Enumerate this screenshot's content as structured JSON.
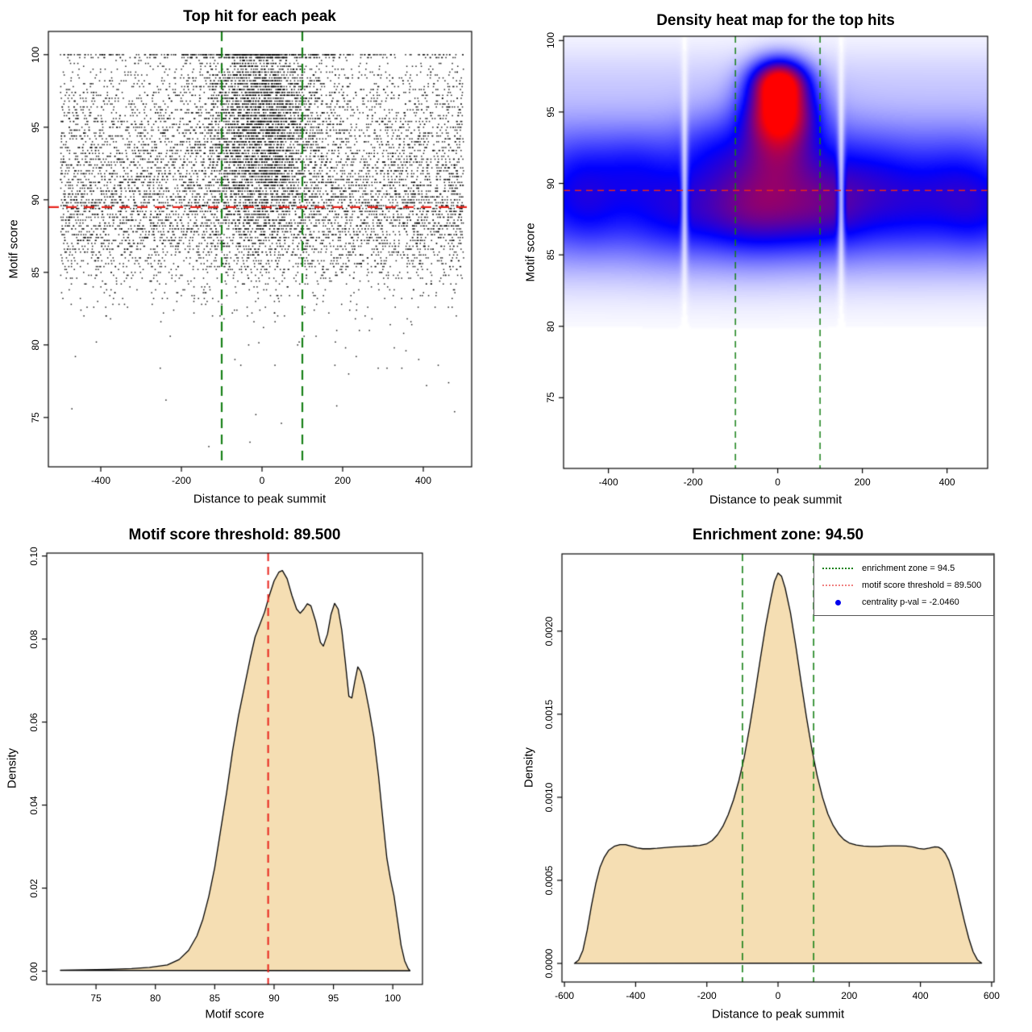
{
  "colors": {
    "background": "#ffffff",
    "threshold_red": "#e8241c",
    "zone_green": "#168016",
    "legend_red": "#f08080",
    "legend_blue": "#0000ee",
    "density_fill": "#f5deb3",
    "curve_stroke": "#000000",
    "heat_low": "#ffffff",
    "heat_mid": "#0000ff",
    "heat_high": "#ff0000"
  },
  "chart_data": [
    {
      "id": "top-hit-scatter",
      "type": "scatter",
      "title": "Top hit for each peak",
      "xlabel": "Distance to peak summit",
      "ylabel": "Motif score",
      "xlim": [
        -530,
        520
      ],
      "ylim": [
        71.6,
        101.6
      ],
      "x_tick_labels": [
        "-400",
        "-200",
        "0",
        "200",
        "400"
      ],
      "y_tick_labels": [
        "75",
        "80",
        "85",
        "90",
        "95",
        "100"
      ],
      "point_color": "#000000",
      "motif_score_threshold": 89.5,
      "enrichment_zone": [
        -100,
        100
      ],
      "lines": [
        {
          "orient": "h",
          "v": 89.5,
          "color": "#e8241c",
          "w": 2.2,
          "dash": [
            13,
            9
          ]
        },
        {
          "orient": "v",
          "v": -100,
          "color": "#168016",
          "w": 2.2,
          "dash": [
            12,
            8
          ]
        },
        {
          "orient": "v",
          "v": 100,
          "color": "#168016",
          "w": 2.2,
          "dash": [
            12,
            8
          ]
        }
      ],
      "sim": {
        "seed": 42,
        "n": 10500,
        "quantum": 0.2,
        "x_range": [
          -500,
          500
        ],
        "center_sigma": 68,
        "center_weight_base": 0.08,
        "center_weight_from": 88,
        "center_weight_slope": 0.045,
        "center_weight_max": 0.62,
        "top_lines": [
          {
            "score": 100,
            "n": 230
          },
          {
            "score": 99.8,
            "n": 130
          }
        ],
        "outliers": [
          [
            -30,
            73.3
          ],
          [
            -8,
            80.15
          ]
        ],
        "low_tail": {
          "n": 22,
          "range": [
            81,
            83.6
          ]
        }
      }
    },
    {
      "id": "top-hit-heatmap",
      "type": "heatmap",
      "title": "Density heat map for the top hits",
      "xlabel": "Distance to peak summit",
      "ylabel": "Motif score",
      "xlim": [
        -506,
        496
      ],
      "ylim": [
        70.05,
        100.3
      ],
      "x_tick_labels": [
        "-400",
        "-200",
        "0",
        "200",
        "400"
      ],
      "y_tick_labels": [
        "75",
        "80",
        "85",
        "90",
        "95",
        "100"
      ],
      "palette": [
        "#ffffff",
        "#0000ff",
        "#ff0000"
      ],
      "hotspots": [
        {
          "x": 6,
          "y": 95.15
        },
        {
          "x": 4,
          "y": 97.2
        }
      ],
      "white_gap_columns": [
        -220,
        150
      ],
      "blobs": [
        [
          0.34,
          null,
          null,
          88.4,
          2.9
        ],
        [
          0.1,
          null,
          null,
          93.2,
          2.0
        ],
        [
          0.05,
          null,
          null,
          97.3,
          1.7
        ],
        [
          0.18,
          0,
          110,
          91.3,
          2.6
        ],
        [
          0.15,
          0,
          150,
          87.6,
          1.8
        ],
        [
          0.8,
          6,
          54,
          95.15,
          1.5
        ],
        [
          0.78,
          4,
          44,
          97.2,
          1.05
        ],
        [
          0.26,
          0,
          58,
          92.9,
          2.0
        ],
        [
          0.15,
          -60,
          80,
          88.6,
          2.6
        ],
        [
          0.12,
          120,
          70,
          88.6,
          2.4
        ],
        [
          0.1,
          -450,
          55,
          88.3,
          2.0
        ],
        [
          0.13,
          -350,
          75,
          91.2,
          1.7
        ],
        [
          0.1,
          -250,
          80,
          88.0,
          2.4
        ],
        [
          0.1,
          -160,
          55,
          92.5,
          1.8
        ],
        [
          0.12,
          230,
          80,
          90.7,
          1.9
        ],
        [
          0.09,
          320,
          90,
          88.2,
          2.4
        ],
        [
          0.12,
          430,
          70,
          90.4,
          2.0
        ],
        [
          0.09,
          470,
          55,
          87.6,
          2.0
        ],
        [
          0.08,
          -480,
          50,
          91.0,
          1.8
        ]
      ],
      "lines": [
        {
          "orient": "h",
          "v": 89.5,
          "color": "#e8241c",
          "w": 1.5,
          "dash": [
            8,
            6
          ]
        },
        {
          "orient": "v",
          "v": -100,
          "color": "#168016",
          "w": 1.5,
          "dash": [
            8,
            6
          ]
        },
        {
          "orient": "v",
          "v": 100,
          "color": "#168016",
          "w": 1.5,
          "dash": [
            8,
            6
          ]
        }
      ]
    },
    {
      "id": "motif-score-density",
      "type": "area",
      "title": "Motif score threshold: 89.500",
      "xlabel": "Motif score",
      "ylabel": "Density",
      "xlim": [
        70.85,
        102.5
      ],
      "ylim": [
        -0.0032,
        0.1007
      ],
      "x_tick_labels": [
        "75",
        "80",
        "85",
        "90",
        "95",
        "100"
      ],
      "y_tick_labels": [
        "0.00",
        "0.02",
        "0.04",
        "0.06",
        "0.08",
        "0.10"
      ],
      "fill": "#f5deb3",
      "stroke": "#000000",
      "threshold": 89.5,
      "lines": [
        {
          "orient": "v",
          "v": 89.5,
          "color": "#e8241c",
          "w": 2.0,
          "dash": [
            10,
            7
          ]
        }
      ],
      "points": [
        [
          72,
          0.0002
        ],
        [
          74,
          0.0003
        ],
        [
          76,
          0.0004
        ],
        [
          78,
          0.0006
        ],
        [
          79.5,
          0.0009
        ],
        [
          81,
          0.0015
        ],
        [
          82,
          0.0028
        ],
        [
          82.8,
          0.005
        ],
        [
          83.5,
          0.0085
        ],
        [
          84,
          0.0125
        ],
        [
          84.5,
          0.018
        ],
        [
          85,
          0.025
        ],
        [
          85.5,
          0.034
        ],
        [
          86,
          0.043
        ],
        [
          86.5,
          0.053
        ],
        [
          87,
          0.0615
        ],
        [
          87.5,
          0.0685
        ],
        [
          88,
          0.0755
        ],
        [
          88.4,
          0.0805
        ],
        [
          88.8,
          0.0835
        ],
        [
          89.2,
          0.0865
        ],
        [
          89.6,
          0.0905
        ],
        [
          90,
          0.094
        ],
        [
          90.4,
          0.0961
        ],
        [
          90.7,
          0.0965
        ],
        [
          91.1,
          0.0945
        ],
        [
          91.5,
          0.0905
        ],
        [
          91.9,
          0.0872
        ],
        [
          92.2,
          0.0862
        ],
        [
          92.5,
          0.0872
        ],
        [
          92.8,
          0.0885
        ],
        [
          93.1,
          0.088
        ],
        [
          93.5,
          0.0843
        ],
        [
          93.9,
          0.0792
        ],
        [
          94.15,
          0.0783
        ],
        [
          94.5,
          0.0812
        ],
        [
          94.8,
          0.086
        ],
        [
          95.1,
          0.0886
        ],
        [
          95.4,
          0.0872
        ],
        [
          95.7,
          0.0822
        ],
        [
          96,
          0.0745
        ],
        [
          96.3,
          0.0662
        ],
        [
          96.55,
          0.0658
        ],
        [
          96.8,
          0.0698
        ],
        [
          97.05,
          0.0733
        ],
        [
          97.3,
          0.0722
        ],
        [
          97.6,
          0.069
        ],
        [
          98,
          0.0632
        ],
        [
          98.4,
          0.0565
        ],
        [
          98.8,
          0.047
        ],
        [
          99.2,
          0.0355
        ],
        [
          99.5,
          0.0272
        ],
        [
          99.8,
          0.0222
        ],
        [
          100.1,
          0.0182
        ],
        [
          100.4,
          0.0122
        ],
        [
          100.7,
          0.0062
        ],
        [
          101,
          0.0025
        ],
        [
          101.3,
          0.0006
        ],
        [
          101.45,
          0.0001
        ]
      ]
    },
    {
      "id": "summit-distance-density",
      "type": "area",
      "title": "Enrichment zone: 94.50",
      "xlabel": "Distance to peak summit",
      "ylabel": "Density",
      "xlim": [
        -607,
        607
      ],
      "ylim": [
        -0.000112,
        0.002465
      ],
      "x_tick_labels": [
        "-600",
        "-400",
        "-200",
        "0",
        "200",
        "400",
        "600"
      ],
      "y_tick_labels": [
        "0.0000",
        "0.0005",
        "0.0010",
        "0.0015",
        "0.0020"
      ],
      "fill": "#f5deb3",
      "stroke": "#000000",
      "enrichment_zone": [
        -100,
        100
      ],
      "lines": [
        {
          "orient": "v",
          "v": -100,
          "color": "#168016",
          "w": 1.6,
          "dash": [
            9,
            6
          ]
        },
        {
          "orient": "v",
          "v": 100,
          "color": "#168016",
          "w": 1.6,
          "dash": [
            9,
            6
          ]
        }
      ],
      "legend": [
        {
          "label": "enrichment zone = 94.5",
          "color": "#168016",
          "marker": "dotted-line"
        },
        {
          "label": "motif score threshold = 89.500",
          "color": "#f08080",
          "marker": "dotted-line"
        },
        {
          "label": "centrality p-val = -2.0460",
          "color": "#0000ee",
          "marker": "point"
        }
      ],
      "points": [
        [
          -572,
          0.0
        ],
        [
          -560,
          2e-05
        ],
        [
          -548,
          8e-05
        ],
        [
          -536,
          0.0002
        ],
        [
          -524,
          0.00035
        ],
        [
          -512,
          0.00048
        ],
        [
          -500,
          0.00058
        ],
        [
          -488,
          0.00064
        ],
        [
          -476,
          0.00068
        ],
        [
          -460,
          0.000705
        ],
        [
          -444,
          0.000715
        ],
        [
          -428,
          0.000715
        ],
        [
          -412,
          0.000705
        ],
        [
          -396,
          0.000695
        ],
        [
          -380,
          0.00069
        ],
        [
          -360,
          0.00069
        ],
        [
          -340,
          0.000693
        ],
        [
          -320,
          0.000697
        ],
        [
          -300,
          0.0007
        ],
        [
          -280,
          0.000703
        ],
        [
          -260,
          0.000705
        ],
        [
          -240,
          0.000707
        ],
        [
          -220,
          0.00071
        ],
        [
          -200,
          0.00072
        ],
        [
          -185,
          0.00074
        ],
        [
          -170,
          0.000775
        ],
        [
          -155,
          0.000825
        ],
        [
          -140,
          0.000895
        ],
        [
          -125,
          0.000985
        ],
        [
          -110,
          0.0011
        ],
        [
          -95,
          0.00124
        ],
        [
          -80,
          0.00142
        ],
        [
          -65,
          0.00162
        ],
        [
          -50,
          0.00183
        ],
        [
          -35,
          0.00203
        ],
        [
          -20,
          0.0022
        ],
        [
          -10,
          0.0023
        ],
        [
          0,
          0.00235
        ],
        [
          10,
          0.00233
        ],
        [
          20,
          0.00226
        ],
        [
          35,
          0.00211
        ],
        [
          50,
          0.00191
        ],
        [
          65,
          0.00169
        ],
        [
          80,
          0.00148
        ],
        [
          95,
          0.00129
        ],
        [
          110,
          0.00113
        ],
        [
          125,
          0.001
        ],
        [
          140,
          0.0009
        ],
        [
          155,
          0.00083
        ],
        [
          170,
          0.00078
        ],
        [
          185,
          0.000745
        ],
        [
          200,
          0.000725
        ],
        [
          220,
          0.000712
        ],
        [
          240,
          0.000706
        ],
        [
          260,
          0.000704
        ],
        [
          280,
          0.000704
        ],
        [
          300,
          0.000706
        ],
        [
          320,
          0.000708
        ],
        [
          340,
          0.000708
        ],
        [
          360,
          0.000706
        ],
        [
          380,
          0.0007
        ],
        [
          395,
          0.000692
        ],
        [
          410,
          0.000688
        ],
        [
          425,
          0.000694
        ],
        [
          440,
          0.000702
        ],
        [
          450,
          0.0007
        ],
        [
          460,
          0.000688
        ],
        [
          470,
          0.000662
        ],
        [
          480,
          0.00062
        ],
        [
          490,
          0.000555
        ],
        [
          500,
          0.00047
        ],
        [
          512,
          0.00036
        ],
        [
          524,
          0.00025
        ],
        [
          536,
          0.00015
        ],
        [
          548,
          7e-05
        ],
        [
          560,
          2.2e-05
        ],
        [
          572,
          2e-06
        ]
      ]
    }
  ]
}
